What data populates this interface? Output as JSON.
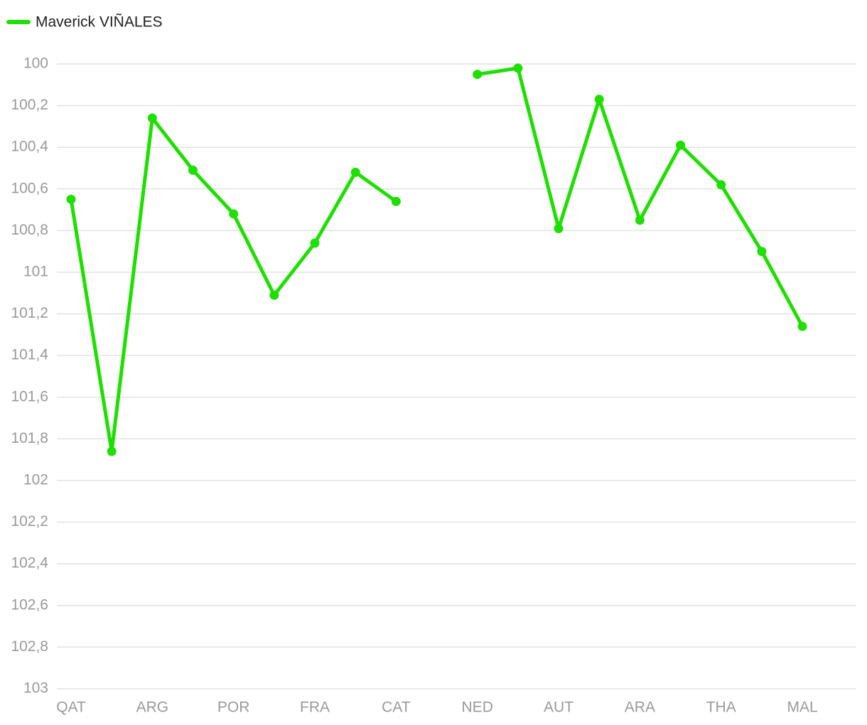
{
  "chart_data": {
    "type": "line",
    "categories": [
      "QAT",
      null,
      "ARG",
      null,
      "POR",
      null,
      "FRA",
      null,
      "CAT",
      null,
      "NED",
      null,
      "AUT",
      null,
      "ARA",
      null,
      "THA",
      null,
      "MAL"
    ],
    "series": [
      {
        "name": "Maverick VIÑALES",
        "color": "#1ee000",
        "values": [
          100.65,
          101.86,
          100.26,
          100.51,
          100.72,
          101.11,
          100.86,
          100.52,
          100.66,
          null,
          100.05,
          100.02,
          100.79,
          100.17,
          100.75,
          100.39,
          100.58,
          100.9,
          101.26
        ]
      }
    ],
    "ylim": [
      100,
      103
    ],
    "y_reversed": true,
    "yticks": [
      100,
      {
        "value": 100.2,
        "label": "100,2"
      },
      {
        "value": 100.4,
        "label": "100,4"
      },
      {
        "value": 100.6,
        "label": "100,6"
      },
      {
        "value": 100.8,
        "label": "100,8"
      },
      101,
      {
        "value": 101.2,
        "label": "101,2"
      },
      {
        "value": 101.4,
        "label": "101,4"
      },
      {
        "value": 101.6,
        "label": "101,6"
      },
      {
        "value": 101.8,
        "label": "101,8"
      },
      102,
      {
        "value": 102.2,
        "label": "102,2"
      },
      {
        "value": 102.4,
        "label": "102,4"
      },
      {
        "value": 102.6,
        "label": "102,6"
      },
      {
        "value": 102.8,
        "label": "102,8"
      },
      103
    ],
    "grid": true,
    "legend": "top-left"
  }
}
